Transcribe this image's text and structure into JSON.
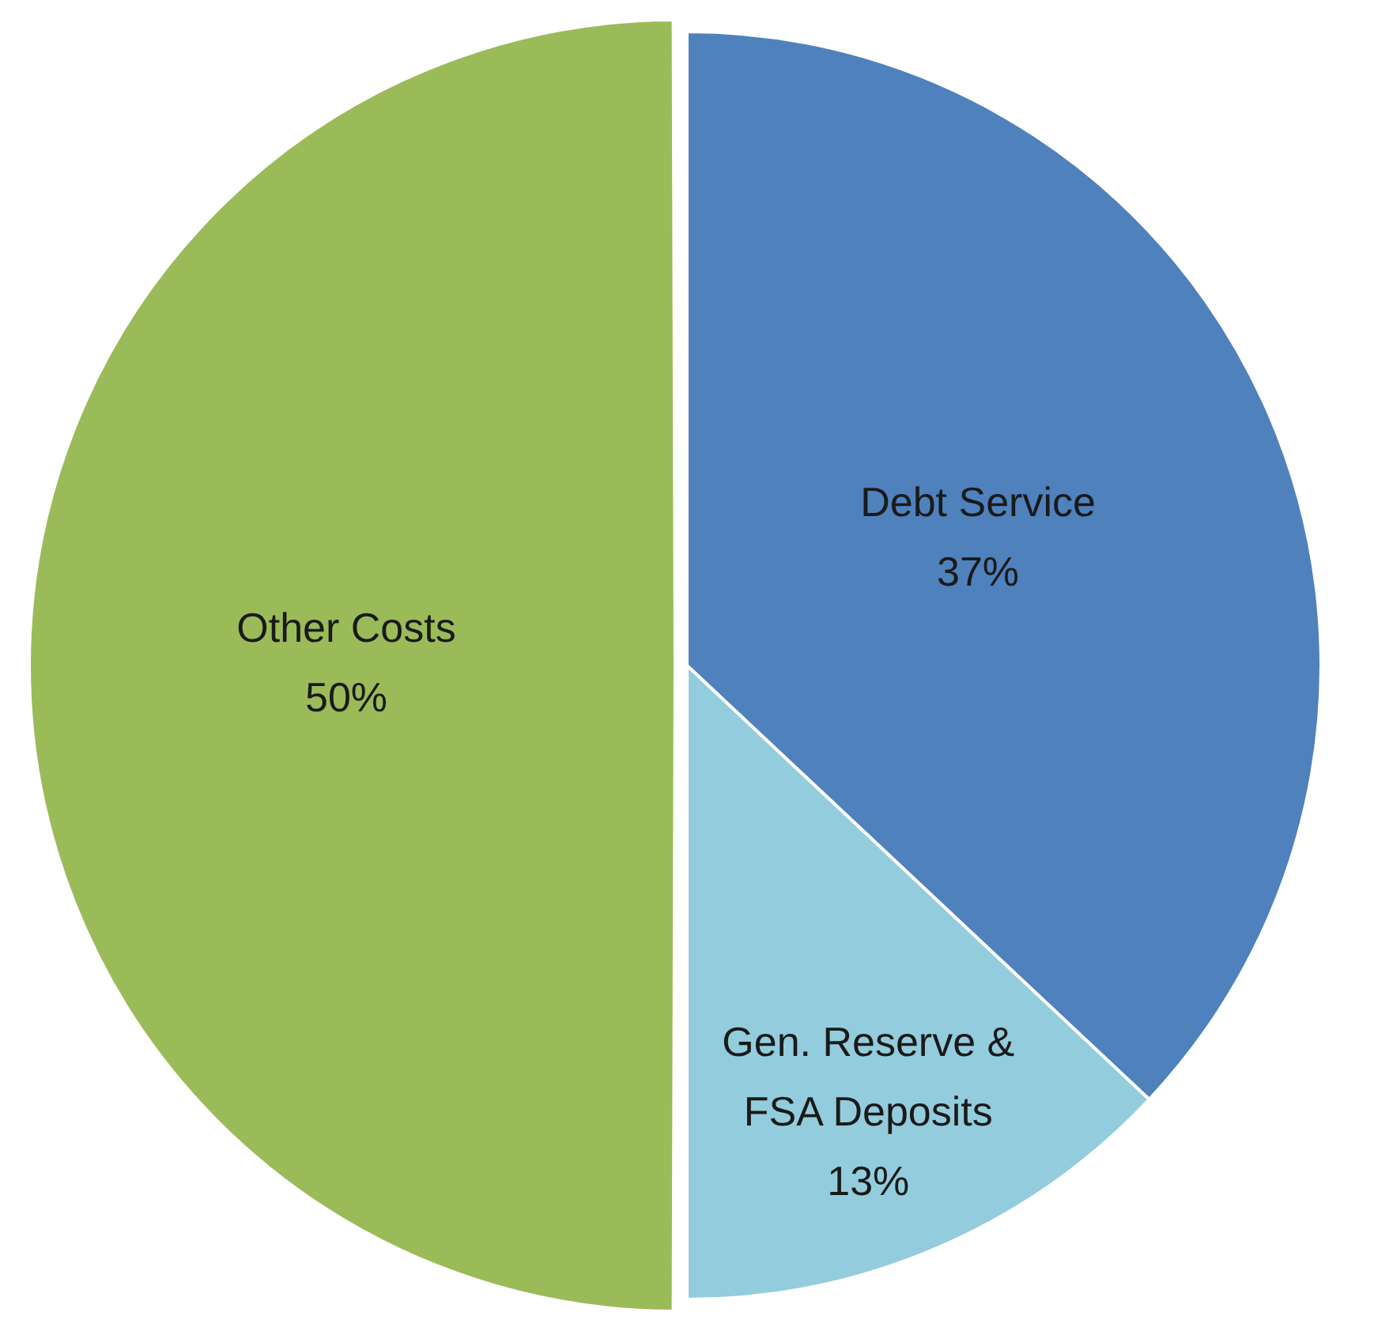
{
  "chart_data": {
    "type": "pie",
    "categories": [
      "Debt Service",
      "Gen. Reserve & FSA Deposits",
      "Other Costs"
    ],
    "values": [
      37,
      13,
      50
    ],
    "colors": [
      "#4f81bd",
      "#93cddd",
      "#9bbb59"
    ],
    "value_labels": [
      "37%",
      "13%",
      "50%"
    ],
    "legend": false
  }
}
